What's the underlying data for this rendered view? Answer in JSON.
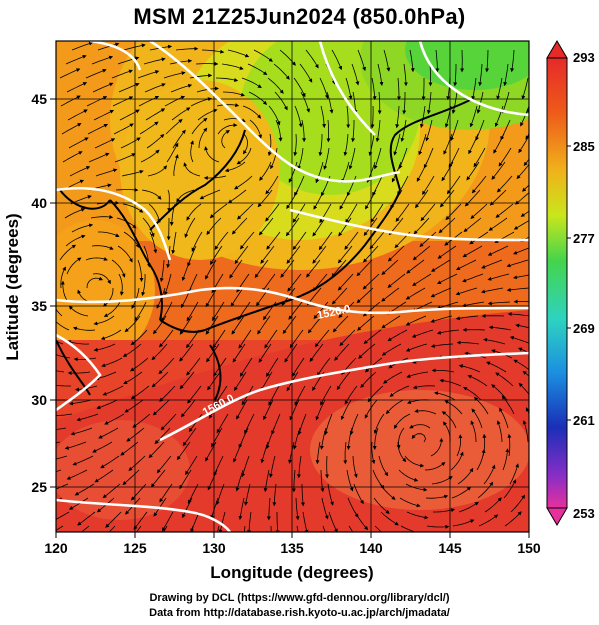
{
  "title": "MSM 21Z25Jun2024 (850.0hPa)",
  "x_axis": {
    "label": "Longitude (degrees)",
    "range": [
      120,
      150
    ],
    "ticks": [
      120,
      125,
      130,
      135,
      140,
      145,
      150
    ]
  },
  "y_axis": {
    "label": "Latitude  (degrees)",
    "range": [
      22.4,
      47.6
    ],
    "ticks": [
      25,
      30,
      35,
      40,
      45
    ]
  },
  "colorbar": {
    "range": [
      253,
      293
    ],
    "labels": [
      293,
      285,
      277,
      269,
      261,
      253
    ],
    "colors": [
      "#e8309c",
      "#1a2fb8",
      "#1b8fe0",
      "#2ed3c0",
      "#45d44b",
      "#c9e61c",
      "#f0b21a",
      "#ee5a1a",
      "#e62a2a"
    ]
  },
  "contours": [
    {
      "label": "1520.0"
    },
    {
      "label": "1560.0"
    }
  ],
  "credits": [
    "Drawing by DCL (https://www.gfd-dennou.org/library/dcl/)",
    "Data from http://database.rish.kyoto-u.ac.jp/arch/jmadata/"
  ]
}
